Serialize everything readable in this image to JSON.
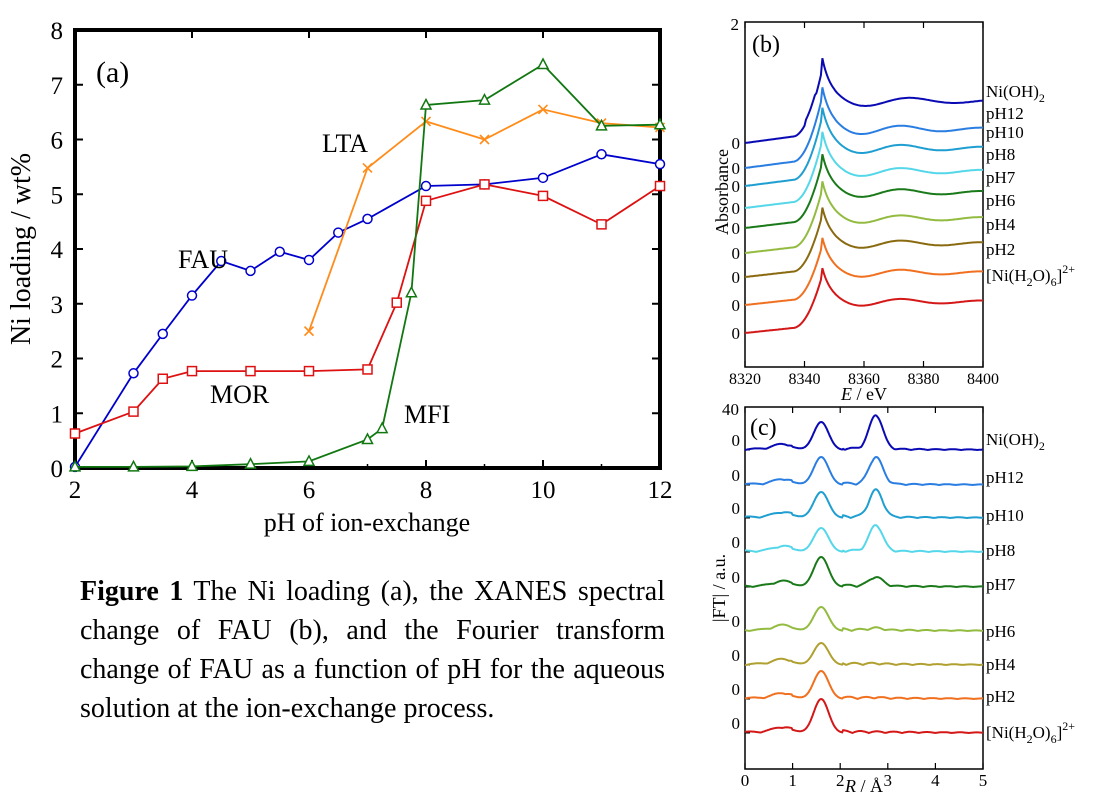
{
  "caption": {
    "label": "Figure 1",
    "text": " The Ni loading (a), the XANES spectral change of FAU (b), and the Fourier transform change of FAU as a function of pH for the aqueous solution at the ion-exchange process."
  },
  "chart_data": [
    {
      "type": "line",
      "panel_label": "(a)",
      "xlabel": "pH of ion-exchange",
      "ylabel": "Ni loading / wt%",
      "xlim": [
        2,
        12
      ],
      "ylim": [
        0,
        8
      ],
      "xticks": [
        2,
        4,
        6,
        8,
        10,
        12
      ],
      "yticks": [
        0,
        1,
        2,
        3,
        4,
        5,
        6,
        7,
        8
      ],
      "grid": false,
      "series": [
        {
          "name": "FAU",
          "color": "#0000cc",
          "marker": "circle",
          "x": [
            2,
            3,
            3.5,
            4,
            4.5,
            5,
            5.5,
            6,
            6.5,
            7,
            8,
            9,
            10,
            11,
            12
          ],
          "y": [
            0.02,
            1.73,
            2.45,
            3.15,
            3.78,
            3.6,
            3.95,
            3.8,
            4.3,
            4.55,
            5.15,
            5.18,
            5.3,
            5.73,
            5.55
          ]
        },
        {
          "name": "MOR",
          "color": "#dd1111",
          "marker": "square",
          "x": [
            2,
            3,
            3.5,
            4,
            5,
            6,
            7,
            7.5,
            8,
            9,
            10,
            11,
            12
          ],
          "y": [
            0.63,
            1.03,
            1.63,
            1.77,
            1.77,
            1.77,
            1.8,
            3.02,
            4.88,
            5.18,
            4.97,
            4.45,
            5.15
          ]
        },
        {
          "name": "LTA",
          "color": "#ff8c1a",
          "marker": "x",
          "x": [
            6,
            7,
            8,
            9,
            10,
            11,
            12
          ],
          "y": [
            2.5,
            5.48,
            6.33,
            6.0,
            6.55,
            6.3,
            6.22
          ]
        },
        {
          "name": "MFI",
          "color": "#117711",
          "marker": "triangle",
          "x": [
            2,
            3,
            4,
            5,
            6,
            7,
            7.25,
            7.75,
            8,
            9,
            10,
            11,
            12
          ],
          "y": [
            0.02,
            0.02,
            0.03,
            0.07,
            0.12,
            0.52,
            0.72,
            3.2,
            6.63,
            6.72,
            7.37,
            6.25,
            6.27
          ]
        }
      ]
    },
    {
      "type": "line",
      "panel_label": "(b)",
      "xlabel_italic": "E",
      "xlabel_rest": " / eV",
      "ylabel": "Absorbance",
      "xlim": [
        8320,
        8400
      ],
      "xticks": [
        8320,
        8340,
        8360,
        8380,
        8400
      ],
      "top_tick": "2",
      "offset_tick": "0",
      "series": [
        {
          "name": "Ni(OH)2",
          "color": "#0a0ab4"
        },
        {
          "name": "pH12",
          "color": "#2a7de1"
        },
        {
          "name": "pH10",
          "color": "#1f9ed1"
        },
        {
          "name": "pH8",
          "color": "#55d7ea"
        },
        {
          "name": "pH7",
          "color": "#1a7a1a"
        },
        {
          "name": "pH6",
          "color": "#93bb40"
        },
        {
          "name": "pH4",
          "color": "#8a6a10"
        },
        {
          "name": "pH2",
          "color": "#f07020"
        },
        {
          "name": "[Ni(H2O)6]2+",
          "color": "#d41818"
        }
      ]
    },
    {
      "type": "line",
      "panel_label": "(c)",
      "xlabel_italic": "R",
      "xlabel_rest": " / Å",
      "ylabel": "|FT| / a.u.",
      "xlim": [
        0,
        5
      ],
      "xticks": [
        0,
        1,
        2,
        3,
        4,
        5
      ],
      "top_tick": "40",
      "offset_tick": "0",
      "series": [
        {
          "name": "Ni(OH)2",
          "color": "#0a0ab4"
        },
        {
          "name": "pH12",
          "color": "#2a7de1"
        },
        {
          "name": "pH10",
          "color": "#1f9ed1"
        },
        {
          "name": "pH8",
          "color": "#55d7ea"
        },
        {
          "name": "pH7",
          "color": "#1a7a1a"
        },
        {
          "name": "pH6",
          "color": "#93bb40"
        },
        {
          "name": "pH4",
          "color": "#b0a030"
        },
        {
          "name": "pH2",
          "color": "#f07020"
        },
        {
          "name": "[Ni(H2O)6]2+",
          "color": "#d41818"
        }
      ]
    }
  ]
}
